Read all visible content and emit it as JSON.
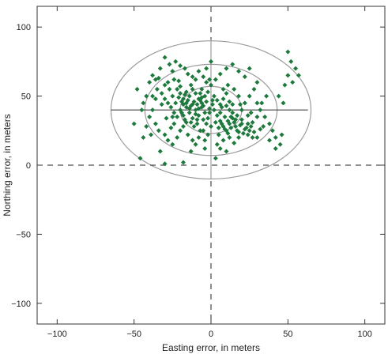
{
  "chart_data": {
    "type": "scatter",
    "xlabel": "Easting error, in meters",
    "ylabel": "Northing error, in meters",
    "xlim": [
      -113,
      113
    ],
    "ylim": [
      -115,
      115
    ],
    "x_ticks": [
      -100,
      -50,
      0,
      50,
      100
    ],
    "y_ticks": [
      -100,
      -50,
      0,
      50,
      100
    ],
    "x_tick_labels": [
      "−100",
      "−50",
      "0",
      "50",
      "100"
    ],
    "y_tick_labels": [
      "−100",
      "−50",
      "0",
      "50",
      "100"
    ],
    "grid": false,
    "zero_lines": "dashed",
    "marker_color": "#1e7a3c",
    "ellipse_color": "#9a9a9a",
    "crosshair_color": "#333333",
    "center": [
      0,
      40
    ],
    "crosshair": {
      "x_extent": [
        -65,
        63
      ],
      "y_extent": [
        -10,
        91
      ]
    },
    "ellipses": [
      {
        "rx": 20,
        "ry": 17
      },
      {
        "rx": 43,
        "ry": 33
      },
      {
        "rx": 65,
        "ry": 50
      }
    ],
    "series": [
      {
        "values": [
          [
            -40,
            60
          ],
          [
            -38,
            65
          ],
          [
            -36,
            62
          ],
          [
            -33,
            70
          ],
          [
            -30,
            78
          ],
          [
            -27,
            73
          ],
          [
            -25,
            68
          ],
          [
            -23,
            75
          ],
          [
            -20,
            72
          ],
          [
            -17,
            70
          ],
          [
            -15,
            66
          ],
          [
            -12,
            64
          ],
          [
            -10,
            62
          ],
          [
            -8,
            68
          ],
          [
            -5,
            64
          ],
          [
            -3,
            60
          ],
          [
            0,
            58
          ],
          [
            3,
            62
          ],
          [
            6,
            66
          ],
          [
            10,
            70
          ],
          [
            14,
            73
          ],
          [
            18,
            68
          ],
          [
            22,
            64
          ],
          [
            25,
            70
          ],
          [
            -35,
            55
          ],
          [
            -32,
            52
          ],
          [
            -30,
            48
          ],
          [
            -28,
            45
          ],
          [
            -25,
            50
          ],
          [
            -22,
            55
          ],
          [
            -20,
            52
          ],
          [
            -18,
            48
          ],
          [
            -16,
            45
          ],
          [
            -14,
            50
          ],
          [
            -12,
            55
          ],
          [
            -10,
            52
          ],
          [
            -8,
            48
          ],
          [
            -6,
            45
          ],
          [
            -4,
            50
          ],
          [
            -2,
            53
          ],
          [
            2,
            50
          ],
          [
            4,
            47
          ],
          [
            6,
            44
          ],
          [
            8,
            48
          ],
          [
            10,
            52
          ],
          [
            12,
            46
          ],
          [
            -26,
            42
          ],
          [
            -24,
            38
          ],
          [
            -22,
            35
          ],
          [
            -20,
            40
          ],
          [
            -18,
            36
          ],
          [
            -16,
            42
          ],
          [
            -14,
            38
          ],
          [
            -12,
            34
          ],
          [
            -10,
            40
          ],
          [
            -8,
            36
          ],
          [
            -6,
            42
          ],
          [
            -4,
            38
          ],
          [
            -2,
            34
          ],
          [
            -18,
            44
          ],
          [
            -15,
            47
          ],
          [
            -13,
            43
          ],
          [
            -11,
            46
          ],
          [
            -9,
            44
          ],
          [
            -7,
            47
          ],
          [
            -5,
            43
          ],
          [
            -3,
            46
          ],
          [
            -21,
            49
          ],
          [
            -19,
            46
          ],
          [
            -17,
            51
          ],
          [
            -23,
            45
          ],
          [
            -14,
            41
          ],
          [
            -12,
            44
          ],
          [
            -10,
            37
          ],
          [
            -8,
            41
          ],
          [
            -6,
            49
          ],
          [
            -16,
            53
          ],
          [
            -20,
            57
          ],
          [
            -13,
            58
          ],
          [
            2,
            40
          ],
          [
            4,
            36
          ],
          [
            6,
            32
          ],
          [
            8,
            28
          ],
          [
            10,
            25
          ],
          [
            12,
            30
          ],
          [
            14,
            34
          ],
          [
            16,
            28
          ],
          [
            18,
            24
          ],
          [
            20,
            30
          ],
          [
            22,
            26
          ],
          [
            24,
            22
          ],
          [
            26,
            28
          ],
          [
            28,
            24
          ],
          [
            30,
            20
          ],
          [
            5,
            22
          ],
          [
            8,
            18
          ],
          [
            12,
            20
          ],
          [
            15,
            16
          ],
          [
            18,
            20
          ],
          [
            6,
            38
          ],
          [
            9,
            35
          ],
          [
            11,
            32
          ],
          [
            13,
            27
          ],
          [
            15,
            31
          ],
          [
            17,
            25
          ],
          [
            19,
            29
          ],
          [
            21,
            23
          ],
          [
            23,
            27
          ],
          [
            25,
            25
          ],
          [
            27,
            31
          ],
          [
            7,
            30
          ],
          [
            9,
            26
          ],
          [
            11,
            23
          ],
          [
            13,
            35
          ],
          [
            16,
            33
          ],
          [
            20,
            33
          ],
          [
            24,
            30
          ],
          [
            10,
            43
          ],
          [
            14,
            38
          ],
          [
            17,
            36
          ],
          [
            -38,
            40
          ],
          [
            -36,
            30
          ],
          [
            -34,
            25
          ],
          [
            -30,
            22
          ],
          [
            -28,
            18
          ],
          [
            -25,
            15
          ],
          [
            -22,
            20
          ],
          [
            -20,
            25
          ],
          [
            -18,
            28
          ],
          [
            -15,
            22
          ],
          [
            -12,
            18
          ],
          [
            -10,
            15
          ],
          [
            -8,
            20
          ],
          [
            -5,
            25
          ],
          [
            -3,
            30
          ],
          [
            -40,
            35
          ],
          [
            -42,
            28
          ],
          [
            -44,
            20
          ],
          [
            -46,
            5
          ],
          [
            -30,
            1
          ],
          [
            -18,
            2
          ],
          [
            -33,
            10
          ],
          [
            -26,
            27
          ],
          [
            -16,
            31
          ],
          [
            32,
            40
          ],
          [
            35,
            35
          ],
          [
            38,
            30
          ],
          [
            40,
            25
          ],
          [
            42,
            20
          ],
          [
            45,
            15
          ],
          [
            48,
            58
          ],
          [
            50,
            65
          ],
          [
            52,
            75
          ],
          [
            55,
            70
          ],
          [
            57,
            65
          ],
          [
            50,
            82
          ],
          [
            53,
            60
          ],
          [
            47,
            45
          ],
          [
            44,
            50
          ],
          [
            36,
            50
          ],
          [
            30,
            45
          ],
          [
            28,
            55
          ],
          [
            25,
            50
          ],
          [
            22,
            45
          ],
          [
            20,
            40
          ],
          [
            34,
            28
          ],
          [
            38,
            18
          ],
          [
            42,
            12
          ],
          [
            46,
            22
          ],
          [
            -44,
            45
          ],
          [
            -42,
            50
          ],
          [
            -48,
            55
          ],
          [
            -45,
            40
          ],
          [
            -50,
            30
          ],
          [
            -6,
            55
          ],
          [
            -1,
            62
          ],
          [
            1,
            47
          ],
          [
            0,
            28
          ],
          [
            -4,
            18
          ],
          [
            -28,
            60
          ],
          [
            -32,
            44
          ],
          [
            -24,
            30
          ],
          [
            -2,
            22
          ],
          [
            30,
            60
          ],
          [
            -11,
            28
          ],
          [
            -9,
            30
          ],
          [
            -7,
            25
          ],
          [
            -5,
            33
          ],
          [
            -1,
            38
          ],
          [
            3,
            31
          ],
          [
            5,
            27
          ],
          [
            4,
            15
          ],
          [
            30,
            35
          ],
          [
            33,
            45
          ],
          [
            -36,
            48
          ],
          [
            -29,
            34
          ],
          [
            -27,
            55
          ],
          [
            -34,
            63
          ],
          [
            -24,
            62
          ],
          [
            -21,
            61
          ],
          [
            -3,
            70
          ],
          [
            0,
            75
          ],
          [
            8,
            55
          ],
          [
            11,
            58
          ],
          [
            15,
            55
          ],
          [
            18,
            50
          ],
          [
            26,
            38
          ],
          [
            -17,
            33
          ],
          [
            -13,
            31
          ],
          [
            -9,
            33
          ],
          [
            -19,
            38
          ],
          [
            -25,
            35
          ],
          [
            7,
            42
          ],
          [
            1,
            44
          ],
          [
            -1,
            41
          ],
          [
            -30,
            58
          ],
          [
            -7,
            52
          ],
          [
            14,
            44
          ],
          [
            12,
            40
          ],
          [
            19,
            44
          ],
          [
            24,
            36
          ],
          [
            27,
            20
          ],
          [
            32,
            26
          ],
          [
            -38,
            50
          ],
          [
            -39,
            22
          ],
          [
            -4,
            12
          ],
          [
            6,
            12
          ],
          [
            10,
            10
          ],
          [
            3,
            5
          ],
          [
            -13,
            10
          ]
        ]
      }
    ]
  }
}
